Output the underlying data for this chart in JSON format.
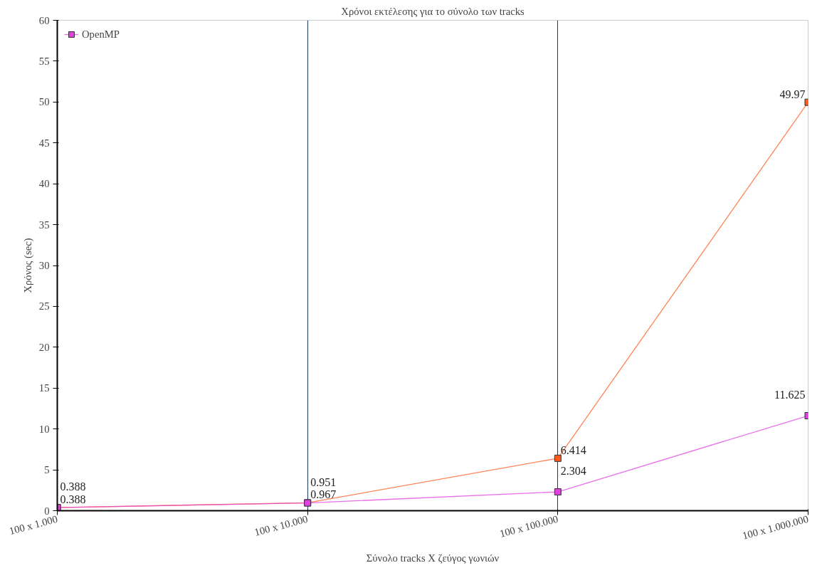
{
  "chart_data": {
    "type": "line",
    "title": "Χρόνοι εκτέλεσης για το σύνολο των tracks",
    "xlabel": "Σύνολο tracks X ζεύγος γωνιών",
    "ylabel": "Χρόνος (sec)",
    "categories": [
      "100 x 1.000",
      "100 x 10.000",
      "100 x 100.000",
      "100 x 1.000.000"
    ],
    "series": [
      {
        "color": "#ff5a1e",
        "values": [
          0.388,
          0.967,
          6.414,
          49.97
        ]
      },
      {
        "name": "OpenMP",
        "color": "#e040e0",
        "values": [
          0.388,
          0.951,
          2.304,
          11.625
        ]
      }
    ],
    "ylim": [
      0,
      60
    ],
    "yticks": [
      0,
      5,
      10,
      15,
      20,
      25,
      30,
      35,
      40,
      45,
      50,
      55,
      60
    ],
    "grid": "x",
    "legend": "top left",
    "marker": "square",
    "data_labels": true
  }
}
